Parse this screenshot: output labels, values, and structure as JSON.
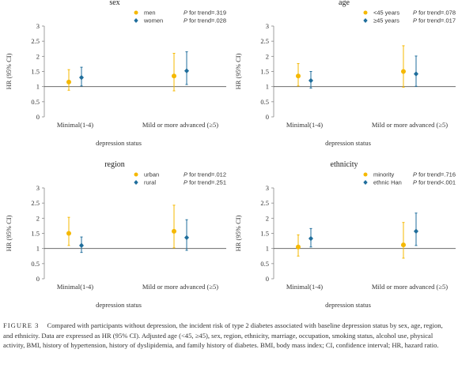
{
  "chart_data": [
    {
      "type": "scatter",
      "title": "sex",
      "xlabel": "depression status",
      "ylabel": "HR (95% CI)",
      "ylim": [
        0,
        3
      ],
      "yticks": [
        "0",
        "0.5",
        "1",
        "1.5",
        "2",
        "2.5",
        "3"
      ],
      "reference_line": 1,
      "categories": [
        "Minimal(1-4)",
        "Mild or more advanced (≥5)"
      ],
      "legend_position": "top-right",
      "series": [
        {
          "name": "men",
          "trend": "P for trend=.319",
          "color": "#f5b800",
          "marker": "circle",
          "values": [
            1.15,
            1.35
          ],
          "lower": [
            0.88,
            0.86
          ],
          "upper": [
            1.56,
            2.1
          ]
        },
        {
          "name": "women",
          "trend": "P for trend=.028",
          "color": "#1f6e9c",
          "marker": "diamond",
          "values": [
            1.3,
            1.52
          ],
          "lower": [
            1.02,
            1.07
          ],
          "upper": [
            1.64,
            2.15
          ]
        }
      ]
    },
    {
      "type": "scatter",
      "title": "age",
      "xlabel": "depression status",
      "ylabel": "HR (95% CI)",
      "ylim": [
        0,
        3
      ],
      "yticks": [
        "0",
        "0.5",
        "1",
        "1.5",
        "2",
        "2.5",
        "3"
      ],
      "reference_line": 1,
      "categories": [
        "Minimal(1-4)",
        "Mild or more advanced (≥5)"
      ],
      "legend_position": "top-right",
      "series": [
        {
          "name": "<45 years",
          "trend": "P for trend=.078",
          "color": "#f5b800",
          "marker": "circle",
          "values": [
            1.35,
            1.5
          ],
          "lower": [
            1.02,
            0.98
          ],
          "upper": [
            1.76,
            2.35
          ]
        },
        {
          "name": "≥45 years",
          "trend": "P for trend=.017",
          "color": "#1f6e9c",
          "marker": "diamond",
          "values": [
            1.2,
            1.42
          ],
          "lower": [
            0.95,
            1.01
          ],
          "upper": [
            1.5,
            2.01
          ]
        }
      ]
    },
    {
      "type": "scatter",
      "title": "region",
      "xlabel": "depression status",
      "ylabel": "HR (95% CI)",
      "ylim": [
        0,
        3
      ],
      "yticks": [
        "0",
        "0.5",
        "1",
        "1.5",
        "2",
        "2.5",
        "3"
      ],
      "reference_line": 1,
      "categories": [
        "Minimal(1-4)",
        "Mild or more advanced (≥5)"
      ],
      "legend_position": "top-right",
      "series": [
        {
          "name": "urban",
          "trend": "P for trend=.012",
          "color": "#f5b800",
          "marker": "circle",
          "values": [
            1.5,
            1.57
          ],
          "lower": [
            1.1,
            1.02
          ],
          "upper": [
            2.03,
            2.43
          ]
        },
        {
          "name": "rural",
          "trend": "P for trend=.251",
          "color": "#1f6e9c",
          "marker": "diamond",
          "values": [
            1.1,
            1.36
          ],
          "lower": [
            0.87,
            0.94
          ],
          "upper": [
            1.38,
            1.95
          ]
        }
      ]
    },
    {
      "type": "scatter",
      "title": "ethnicity",
      "xlabel": "depression status",
      "ylabel": "HR (95% CI)",
      "ylim": [
        0,
        3
      ],
      "yticks": [
        "0",
        "0.5",
        "1",
        "1.5",
        "2",
        "2.5",
        "3"
      ],
      "reference_line": 1,
      "categories": [
        "Minimal(1-4)",
        "Mild or more advanced (≥5)"
      ],
      "legend_position": "top-right",
      "series": [
        {
          "name": "minority",
          "trend": "P for trend=.716",
          "color": "#f5b800",
          "marker": "circle",
          "values": [
            1.05,
            1.12
          ],
          "lower": [
            0.75,
            0.68
          ],
          "upper": [
            1.45,
            1.86
          ]
        },
        {
          "name": "ethnic Han",
          "trend": "P for trend<.001",
          "color": "#1f6e9c",
          "marker": "diamond",
          "values": [
            1.33,
            1.57
          ],
          "lower": [
            1.05,
            1.1
          ],
          "upper": [
            1.66,
            2.17
          ]
        }
      ]
    }
  ],
  "caption": {
    "label": "FIGURE 3",
    "text": "Compared with participants without depression, the incident risk of type 2 diabetes associated with baseline depression status by sex, age, region, and ethnicity. Data are expressed as HR (95% CI). Adjusted age (<45, ≥45), sex, region, ethnicity, marriage, occupation, smoking status, alcohol use, physical activity, BMI, history of hypertension, history of dyslipidemia, and family history of diabetes. BMI, body mass index; CI, confidence interval; HR, hazard ratio."
  }
}
